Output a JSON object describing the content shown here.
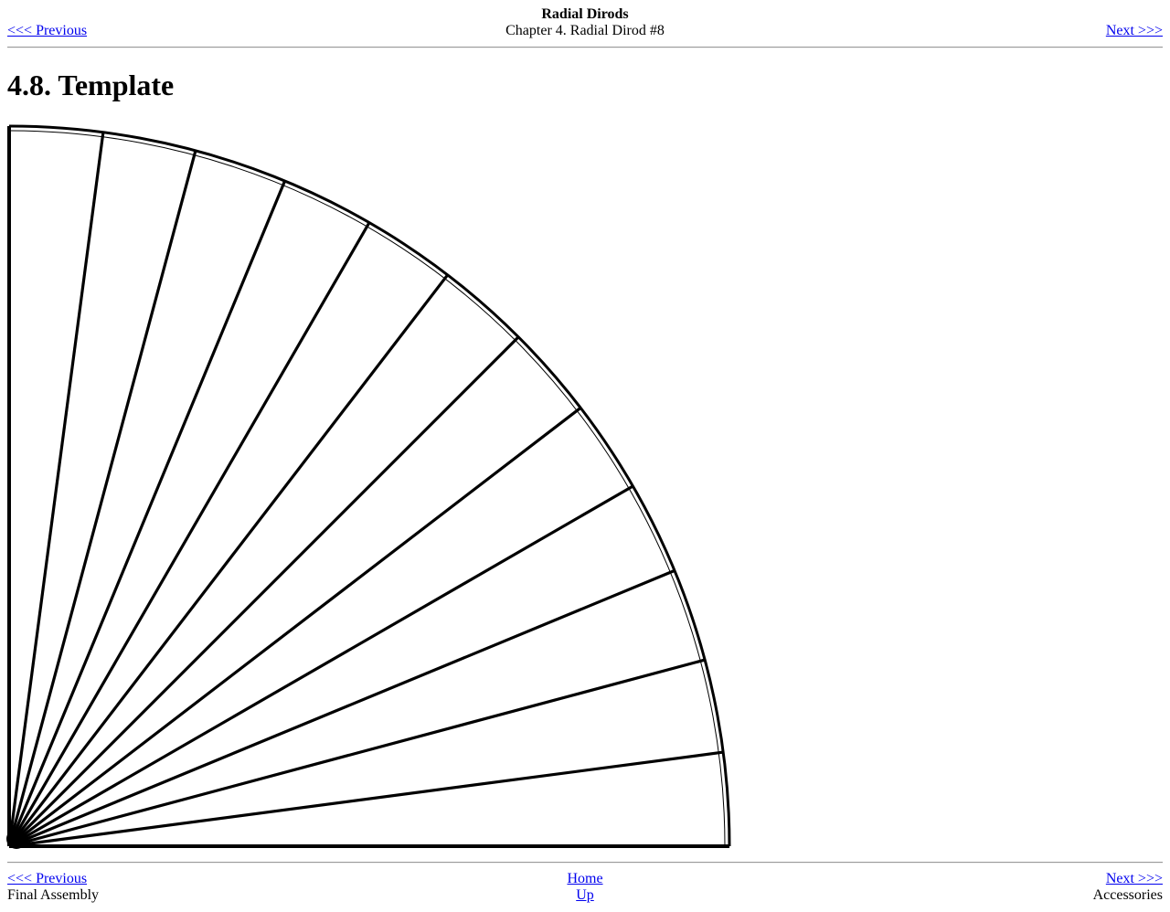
{
  "header": {
    "book_title": "Radial Dirods",
    "chapter_title": "Chapter 4. Radial Dirod #8",
    "prev_label": "<<< Previous",
    "next_label": "Next >>>"
  },
  "section": {
    "heading": "4.8. Template"
  },
  "figure": {
    "description_icon": "radial-template-drawing",
    "spoke_count": 12
  },
  "footer": {
    "prev_label": "<<< Previous",
    "prev_title": "Final Assembly",
    "home_label": "Home",
    "up_label": "Up",
    "next_label": "Next >>>",
    "next_title": "Accessories"
  }
}
